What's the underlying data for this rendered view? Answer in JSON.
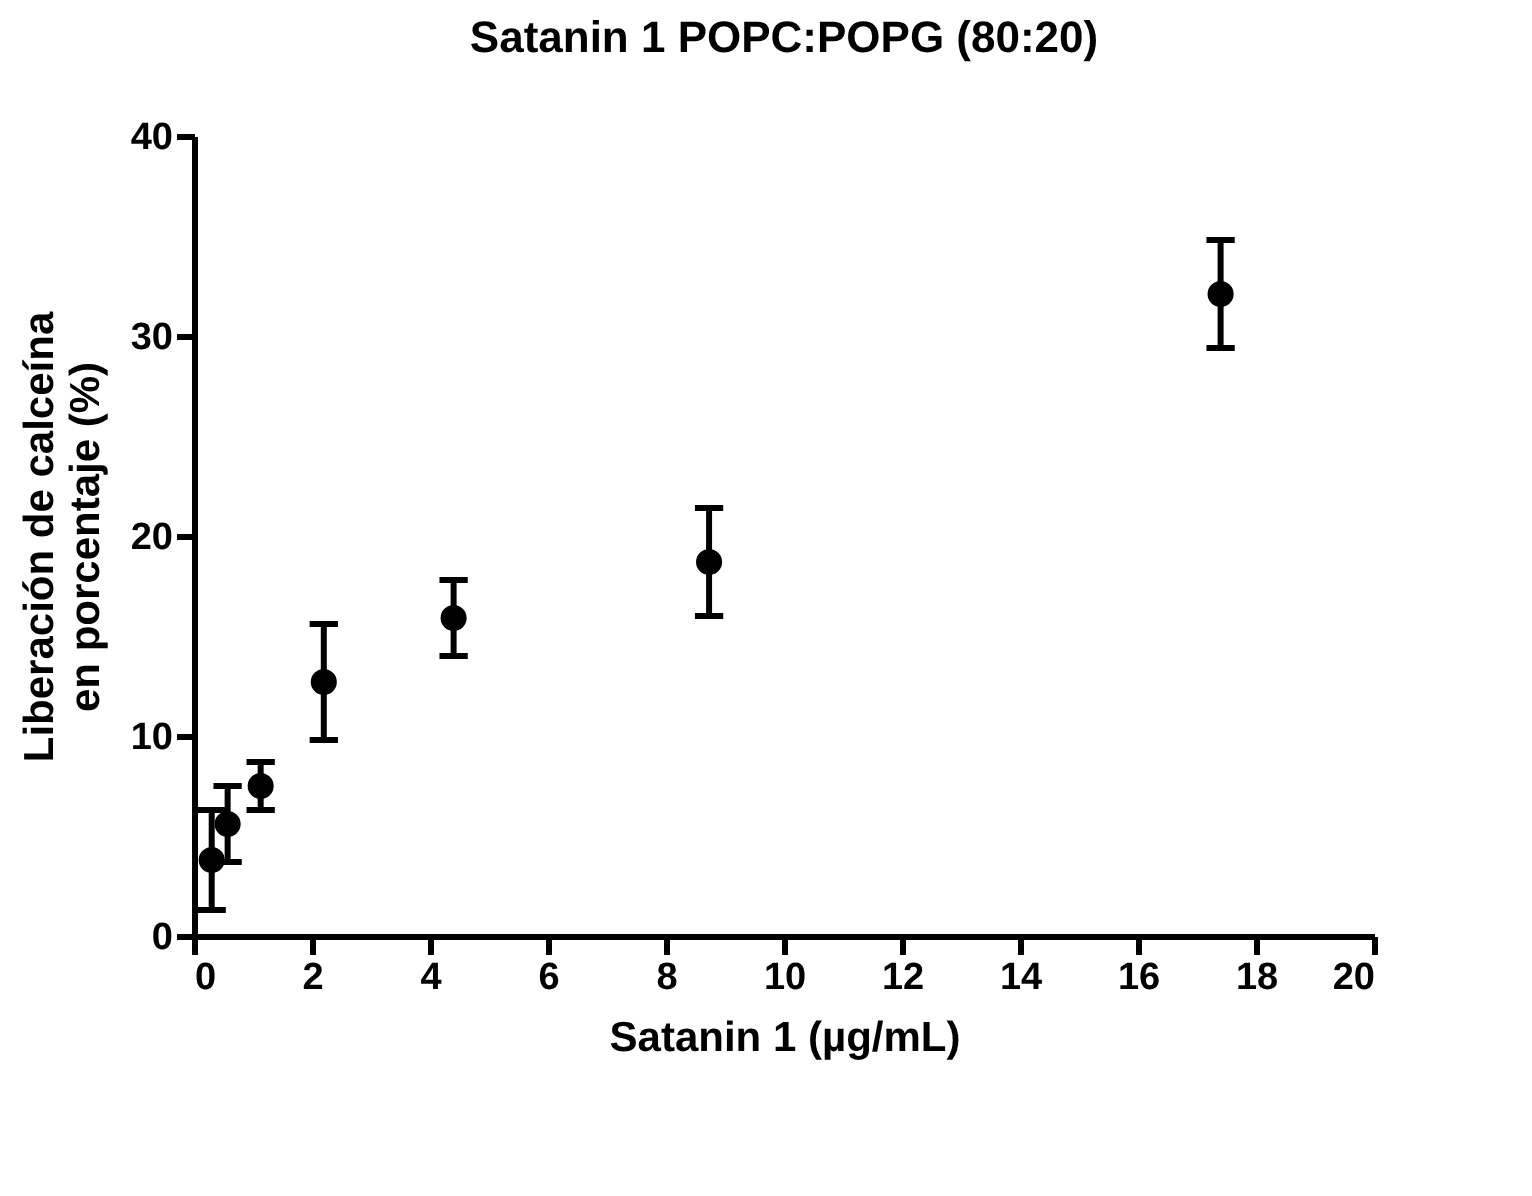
{
  "chart_data": {
    "type": "scatter",
    "title": "Satanin 1 POPC:POPG (80:20)",
    "xlabel": "Satanin 1 (µg/mL)",
    "ylabel": "Liberación de calceína\nen porcentaje (%)",
    "x": [
      0.3,
      0.57,
      1.13,
      2.2,
      4.4,
      8.73,
      17.4
    ],
    "values": [
      3.8,
      5.6,
      7.5,
      12.7,
      15.9,
      18.7,
      32.1
    ],
    "errors": [
      2.5,
      1.9,
      1.2,
      2.9,
      1.9,
      2.7,
      2.7
    ],
    "color": "#000000",
    "xlim": [
      0,
      20
    ],
    "xticks": [
      0,
      2,
      4,
      6,
      8,
      10,
      12,
      14,
      16,
      18,
      20
    ],
    "ylim": [
      0,
      40
    ],
    "yticks": [
      0,
      10,
      20,
      30,
      40
    ],
    "marker": "circle",
    "grid": false,
    "legend": false
  }
}
